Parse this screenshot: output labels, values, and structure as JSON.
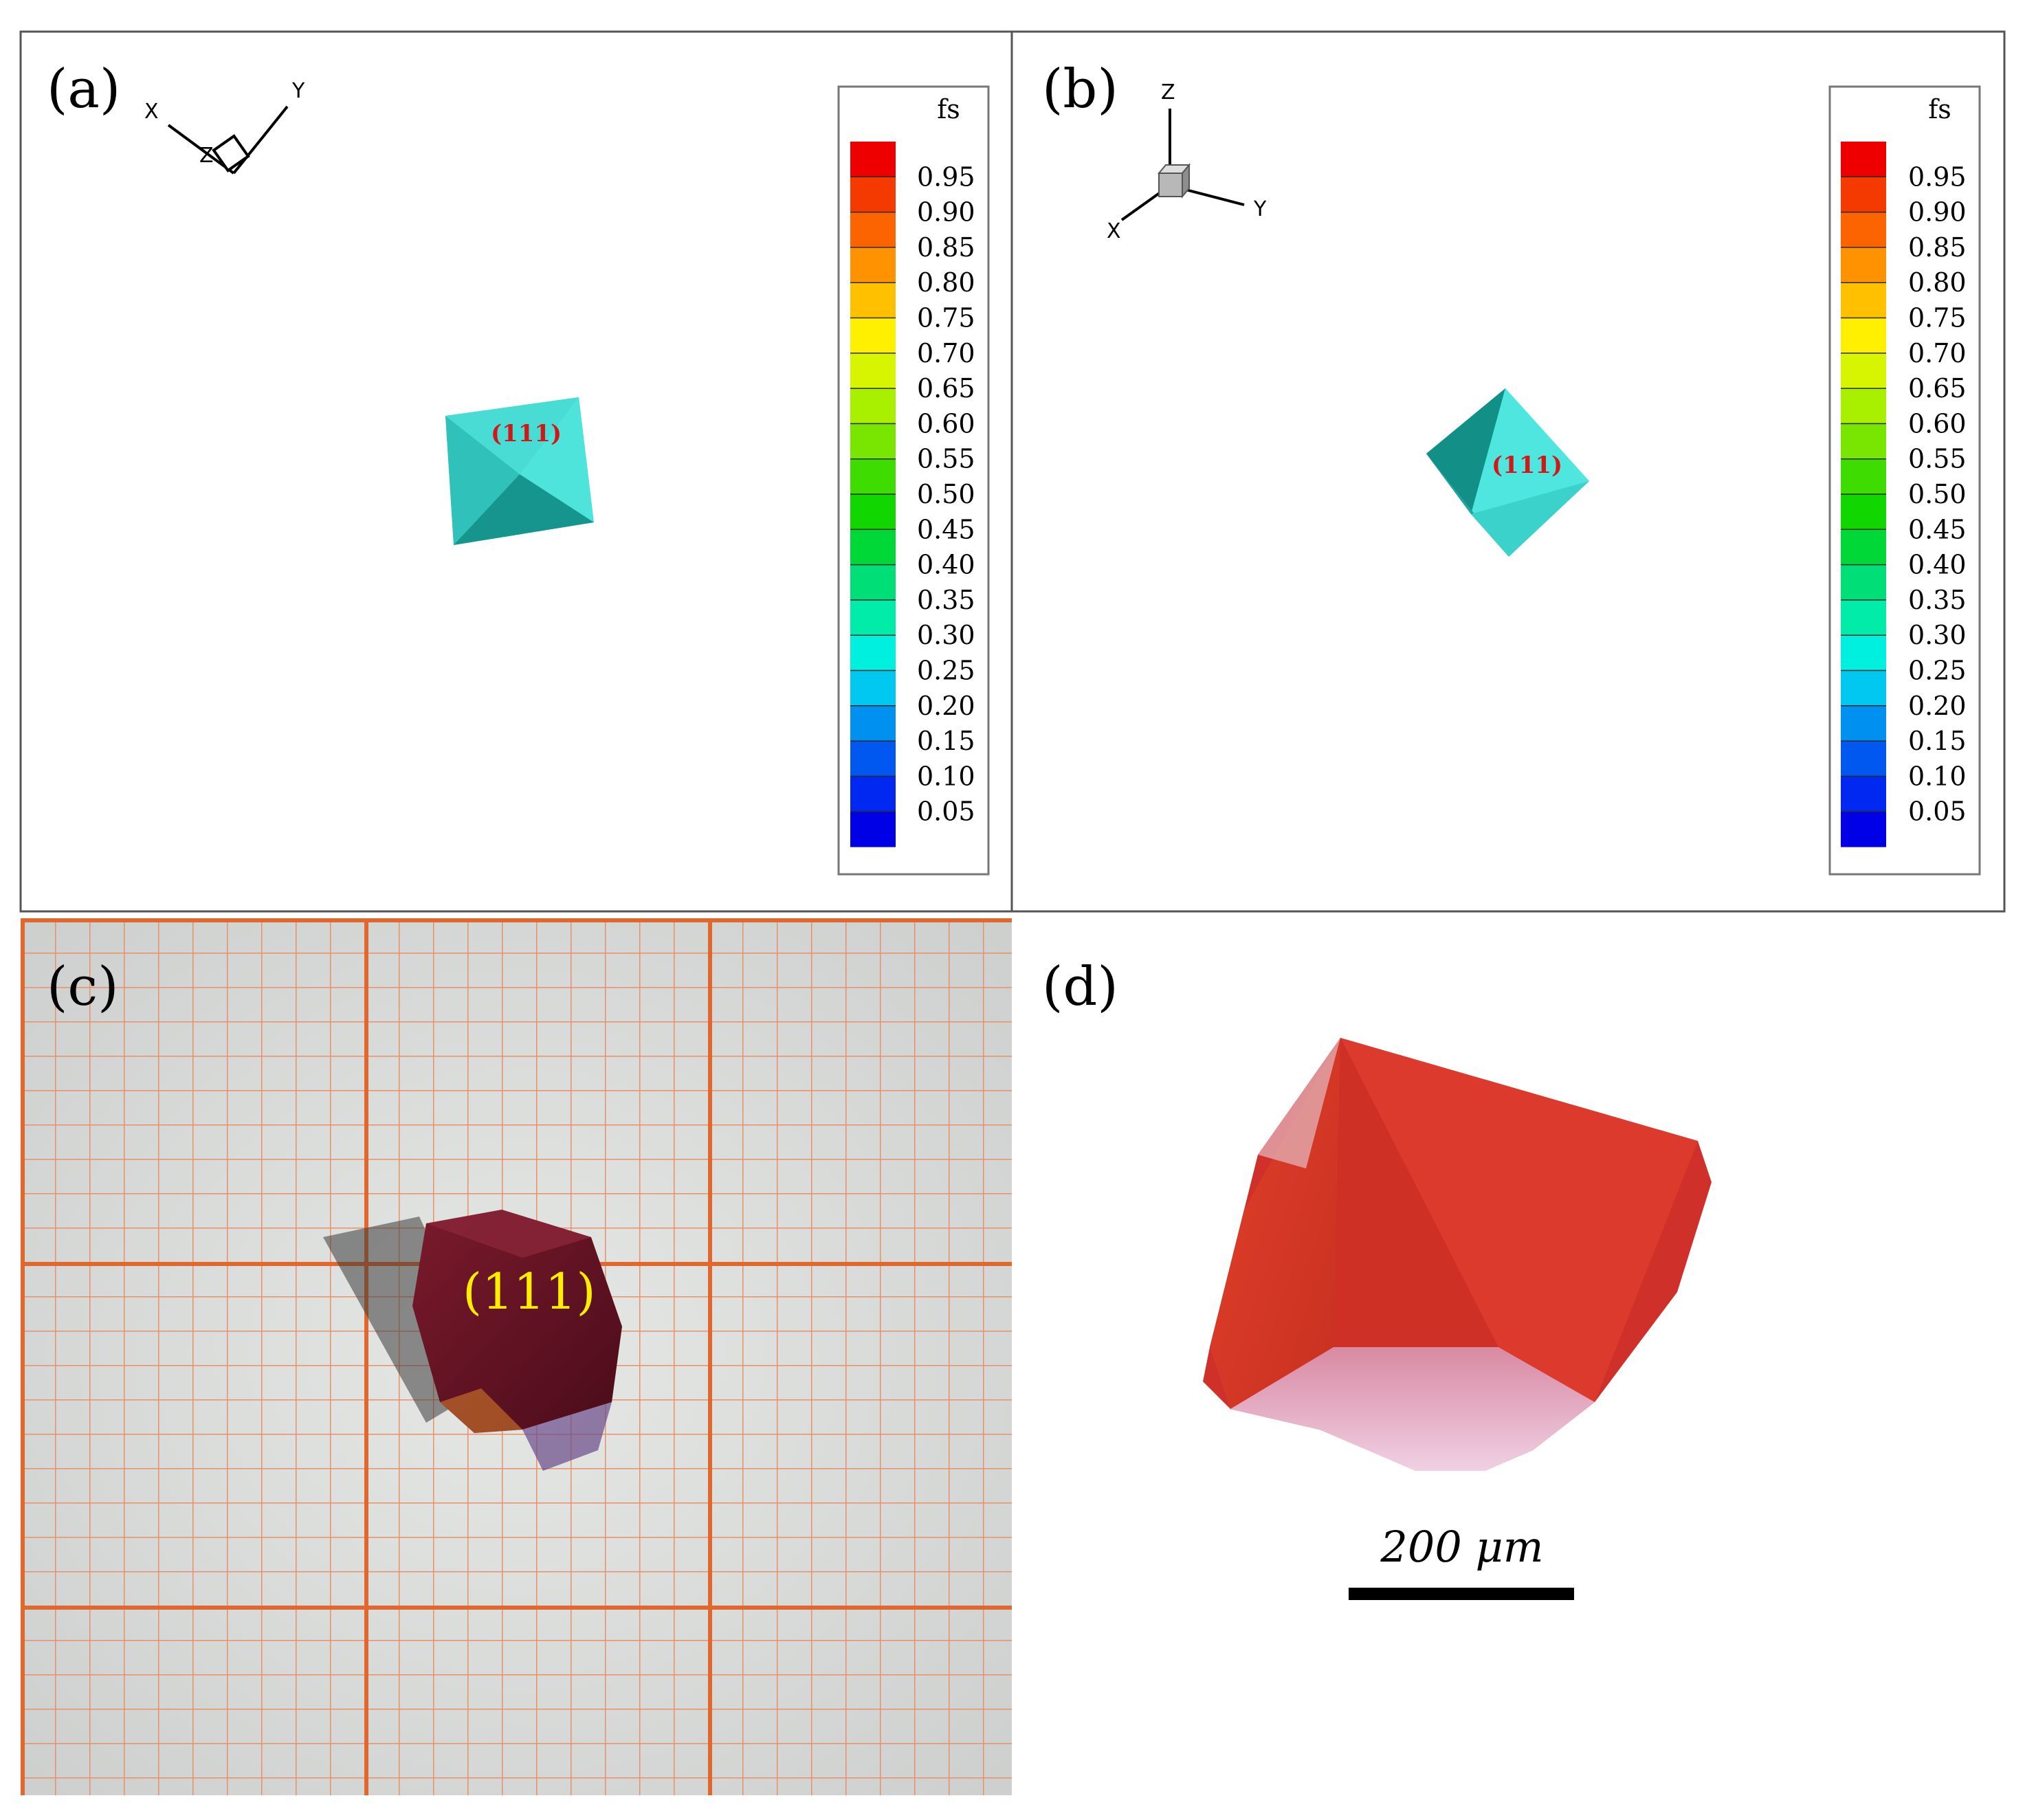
{
  "panels": {
    "a": {
      "label": "(a)",
      "face": "(111)",
      "axes": {
        "x": "X",
        "y": "Y",
        "z": "Z"
      }
    },
    "b": {
      "label": "(b)",
      "face": "(111)",
      "axes": {
        "x": "X",
        "y": "Y",
        "z": "Z"
      }
    },
    "c": {
      "label": "(c)",
      "face": "(111)"
    },
    "d": {
      "label": "(d)",
      "scale_text": "200 μm"
    }
  },
  "colorbar": {
    "title": "fs",
    "ticks": [
      "0.95",
      "0.90",
      "0.85",
      "0.80",
      "0.75",
      "0.70",
      "0.65",
      "0.60",
      "0.55",
      "0.50",
      "0.45",
      "0.40",
      "0.35",
      "0.30",
      "0.25",
      "0.20",
      "0.15",
      "0.10",
      "0.05"
    ],
    "colors": [
      "#ee0000",
      "#f53a00",
      "#fb6400",
      "#ff9200",
      "#ffc000",
      "#fff000",
      "#d8f500",
      "#a8ef00",
      "#78e600",
      "#3edc00",
      "#12d600",
      "#00d838",
      "#00de78",
      "#00eca8",
      "#00f0e0",
      "#00c8f0",
      "#0090f0",
      "#0058f0",
      "#0028f0",
      "#0000e6"
    ]
  },
  "colors": {
    "crystal_cyan": "#3fd8d0",
    "face_label": "#d01818",
    "grid_orange": "#e8703a",
    "paper": "#e2e4e2",
    "crystal_red": "#d83a28",
    "overlay_yellow": "#ffee00"
  }
}
